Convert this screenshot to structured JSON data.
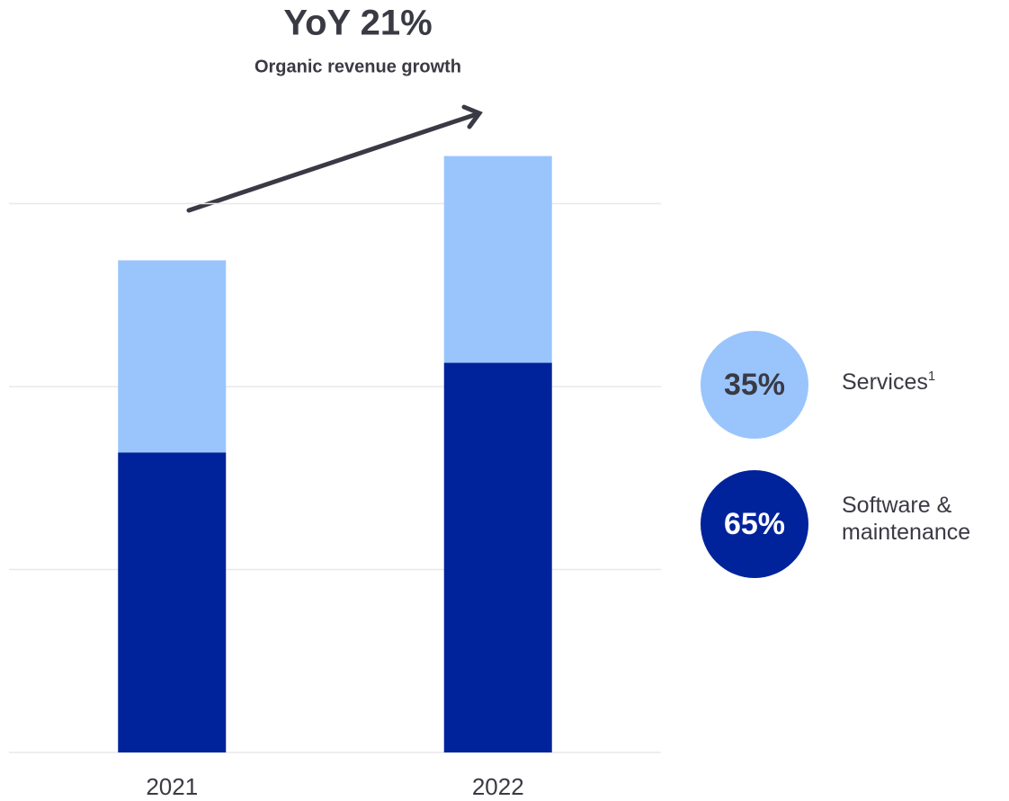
{
  "chart_data": {
    "type": "stacked_bar",
    "title": "YoY 21%",
    "subtitle": "Organic revenue growth",
    "categories": [
      "2021",
      "2022"
    ],
    "series": [
      {
        "name": "Software & maintenance",
        "color": "#00239c",
        "values": [
          1.64,
          2.13
        ],
        "share": {
          "value": 65,
          "label": "65%"
        }
      },
      {
        "name": "Services",
        "footnote": "1",
        "color": "#99c5fc",
        "values": [
          1.05,
          1.13
        ],
        "share": {
          "value": 35,
          "label": "35%"
        }
      }
    ],
    "ylim": [
      0,
      4
    ],
    "yticks": [
      0,
      1,
      2,
      3
    ],
    "grid": true
  }
}
